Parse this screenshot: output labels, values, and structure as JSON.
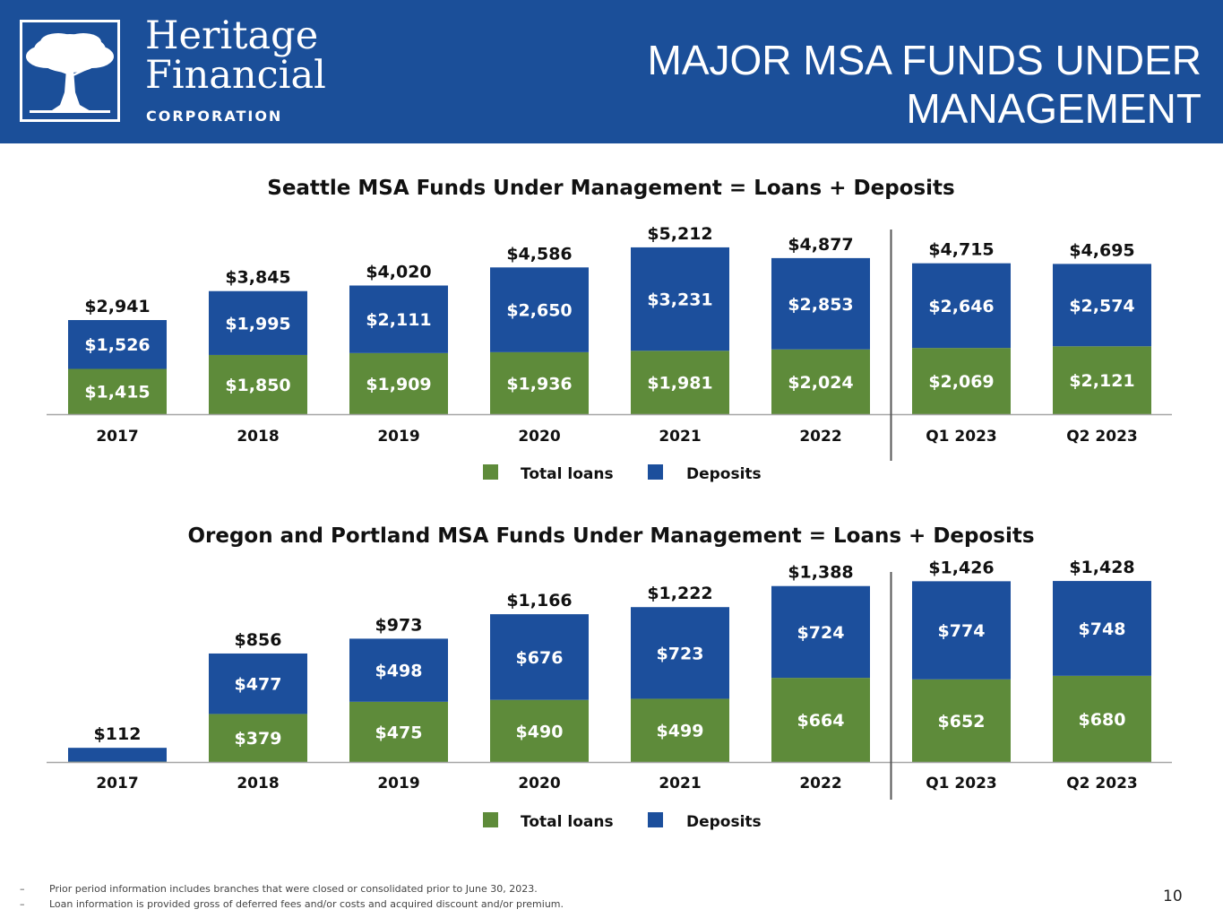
{
  "header": {
    "company_name_line1": "Heritage",
    "company_name_line2": "Financial",
    "company_corp": "CORPORATION",
    "title_line1": "MAJOR MSA FUNDS UNDER",
    "title_line2": "MANAGEMENT"
  },
  "colors": {
    "header_bg": "#1b4f99",
    "loans": "#5e8b3a",
    "deposits": "#1c4f9c"
  },
  "chart_data": [
    {
      "type": "bar",
      "stacked": true,
      "title": "Seattle MSA Funds Under Management = Loans + Deposits",
      "categories": [
        "2017",
        "2018",
        "2019",
        "2020",
        "2021",
        "2022",
        "Q1 2023",
        "Q2 2023"
      ],
      "series": [
        {
          "name": "Total loans",
          "values": [
            1415,
            1850,
            1909,
            1936,
            1981,
            2024,
            2069,
            2121
          ],
          "labels": [
            "$1,415",
            "$1,850",
            "$1,909",
            "$1,936",
            "$1,981",
            "$2,024",
            "$2,069",
            "$2,121"
          ]
        },
        {
          "name": "Deposits",
          "values": [
            1526,
            1995,
            2111,
            2650,
            3231,
            2853,
            2646,
            2574
          ],
          "labels": [
            "$1,526",
            "$1,995",
            "$2,111",
            "$2,650",
            "$3,231",
            "$2,853",
            "$2,646",
            "$2,574"
          ]
        }
      ],
      "totals": [
        2941,
        3845,
        4020,
        4586,
        5212,
        4877,
        4715,
        4695
      ],
      "total_labels": [
        "$2,941",
        "$3,845",
        "$4,020",
        "$4,586",
        "$5,212",
        "$4,877",
        "$4,715",
        "$4,695"
      ],
      "legend": [
        "Total loans",
        "Deposits"
      ],
      "ylim": [
        0,
        5500
      ],
      "divider_after_category": "2022"
    },
    {
      "type": "bar",
      "stacked": true,
      "title": "Oregon and Portland MSA Funds Under Management = Loans + Deposits",
      "categories": [
        "2017",
        "2018",
        "2019",
        "2020",
        "2021",
        "2022",
        "Q1 2023",
        "Q2 2023"
      ],
      "series": [
        {
          "name": "Total loans",
          "values": [
            3,
            379,
            475,
            490,
            499,
            664,
            652,
            680
          ],
          "labels": [
            "",
            "$379",
            "$475",
            "$490",
            "$499",
            "$664",
            "$652",
            "$680"
          ]
        },
        {
          "name": "Deposits",
          "values": [
            109,
            477,
            498,
            676,
            723,
            724,
            774,
            748
          ],
          "labels": [
            "",
            "$477",
            "$498",
            "$676",
            "$723",
            "$724",
            "$774",
            "$748"
          ]
        }
      ],
      "totals": [
        112,
        856,
        973,
        1166,
        1222,
        1388,
        1426,
        1428
      ],
      "total_labels": [
        "$112",
        "$856",
        "$973",
        "$1,166",
        "$1,222",
        "$1,388",
        "$1,426",
        "$1,428"
      ],
      "legend": [
        "Total loans",
        "Deposits"
      ],
      "ylim": [
        0,
        1500
      ],
      "divider_after_category": "2022"
    }
  ],
  "footnotes": [
    "Prior period information includes branches that were closed or consolidated prior to June 30, 2023.",
    "Loan information is provided gross of deferred fees and/or costs and acquired discount and/or premium."
  ],
  "footnote_marker": "–",
  "page_number": "10"
}
